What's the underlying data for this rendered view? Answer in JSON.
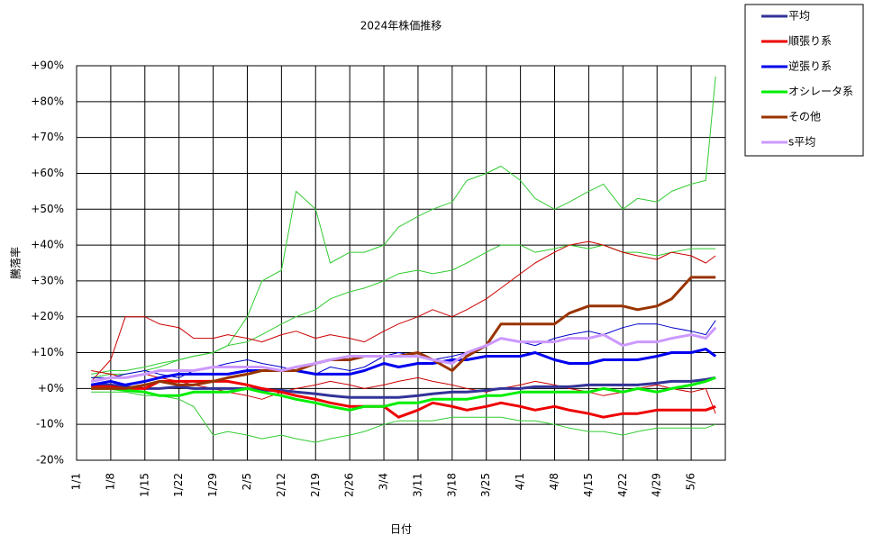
{
  "chart_data": {
    "type": "line",
    "title": "2024年株価推移",
    "xlabel": "日付",
    "ylabel": "騰落率",
    "x": [
      3,
      7,
      10,
      14,
      17,
      21,
      24,
      28,
      31,
      35,
      38,
      42,
      45,
      49,
      52,
      56,
      59,
      63,
      66,
      70,
      73,
      77,
      80,
      84,
      87,
      91,
      94,
      98,
      101,
      105,
      108,
      112,
      115,
      119,
      122,
      126,
      129,
      131
    ],
    "xlim": [
      0,
      133
    ],
    "xticks": [
      {
        "value": 0,
        "label": "1/1"
      },
      {
        "value": 7,
        "label": "1/8"
      },
      {
        "value": 14,
        "label": "1/15"
      },
      {
        "value": 21,
        "label": "1/22"
      },
      {
        "value": 28,
        "label": "1/29"
      },
      {
        "value": 35,
        "label": "2/5"
      },
      {
        "value": 42,
        "label": "2/12"
      },
      {
        "value": 49,
        "label": "2/19"
      },
      {
        "value": 56,
        "label": "2/26"
      },
      {
        "value": 63,
        "label": "3/4"
      },
      {
        "value": 70,
        "label": "3/11"
      },
      {
        "value": 77,
        "label": "3/18"
      },
      {
        "value": 84,
        "label": "3/25"
      },
      {
        "value": 91,
        "label": "4/1"
      },
      {
        "value": 98,
        "label": "4/8"
      },
      {
        "value": 105,
        "label": "4/15"
      },
      {
        "value": 112,
        "label": "4/22"
      },
      {
        "value": 119,
        "label": "4/29"
      },
      {
        "value": 126,
        "label": "5/6"
      }
    ],
    "ylim": [
      -20,
      90
    ],
    "yticks": [
      {
        "value": -20,
        "label": "-20%"
      },
      {
        "value": -10,
        "label": "-10%"
      },
      {
        "value": 0,
        "label": "+0%"
      },
      {
        "value": 10,
        "label": "+10%"
      },
      {
        "value": 20,
        "label": "+20%"
      },
      {
        "value": 30,
        "label": "+30%"
      },
      {
        "value": 40,
        "label": "+40%"
      },
      {
        "value": 50,
        "label": "+50%"
      },
      {
        "value": 60,
        "label": "+60%"
      },
      {
        "value": 70,
        "label": "+70%"
      },
      {
        "value": 80,
        "label": "+80%"
      },
      {
        "value": 90,
        "label": "+90%"
      }
    ],
    "grid": true,
    "legend": "outside-top-right",
    "series": [
      {
        "color": "#33cc33",
        "line_width": 1,
        "values": [
          3,
          4,
          4,
          5,
          6,
          8,
          9,
          10,
          12,
          20,
          30,
          33,
          55,
          50,
          35,
          38,
          38,
          40,
          45,
          48,
          50,
          52,
          58,
          60,
          62,
          58,
          53,
          50,
          52,
          55,
          57,
          50,
          53,
          52,
          55,
          57,
          58,
          87
        ]
      },
      {
        "color": "#33cc33",
        "line_width": 1,
        "values": [
          -1,
          -1,
          -1,
          -2,
          -2,
          -3,
          -5,
          -13,
          -12,
          -13,
          -14,
          -13,
          -14,
          -15,
          -14,
          -13,
          -12,
          -10,
          -9,
          -9,
          -9,
          -8,
          -8,
          -8,
          -8,
          -9,
          -9,
          -10,
          -11,
          -12,
          -12,
          -13,
          -12,
          -11,
          -11,
          -11,
          -11,
          -10
        ]
      },
      {
        "color": "#33cc33",
        "line_width": 1,
        "values": [
          4,
          5,
          5,
          6,
          7,
          8,
          9,
          10,
          12,
          13,
          15,
          18,
          20,
          22,
          25,
          27,
          28,
          30,
          32,
          33,
          32,
          33,
          35,
          38,
          40,
          40,
          38,
          39,
          40,
          39,
          40,
          38,
          38,
          37,
          38,
          39,
          39,
          39
        ]
      },
      {
        "color": "#cc0000",
        "line_width": 1,
        "values": [
          2,
          8,
          20,
          20,
          18,
          17,
          14,
          14,
          15,
          14,
          13,
          15,
          16,
          14,
          15,
          14,
          13,
          16,
          18,
          20,
          22,
          20,
          22,
          25,
          28,
          32,
          35,
          38,
          40,
          41,
          40,
          38,
          37,
          36,
          38,
          37,
          35,
          37
        ]
      },
      {
        "color": "#cc0000",
        "line_width": 1,
        "values": [
          5,
          4,
          3,
          4,
          3,
          2,
          1,
          0,
          -1,
          -2,
          -3,
          -1,
          0,
          1,
          2,
          1,
          0,
          1,
          2,
          3,
          2,
          1,
          0,
          -1,
          0,
          1,
          2,
          1,
          0,
          -1,
          -2,
          -1,
          0,
          1,
          0,
          -1,
          0,
          -7
        ]
      },
      {
        "color": "#0000cc",
        "line_width": 1,
        "values": [
          3,
          3,
          4,
          5,
          4,
          3,
          5,
          6,
          7,
          8,
          7,
          6,
          5,
          4,
          6,
          5,
          6,
          9,
          10,
          9,
          8,
          9,
          10,
          12,
          14,
          13,
          12,
          14,
          15,
          16,
          15,
          17,
          18,
          18,
          17,
          16,
          15,
          19
        ]
      },
      {
        "name": "平均",
        "color": "#333399",
        "line_width": 3,
        "values": [
          1,
          1,
          0.5,
          0,
          0,
          0.5,
          0,
          0,
          0,
          0,
          -0.5,
          -0.5,
          -1,
          -1.5,
          -2,
          -2.5,
          -2.5,
          -2.5,
          -2.5,
          -2,
          -1.5,
          -1,
          -1,
          -0.5,
          0,
          0,
          0.5,
          0.5,
          0.5,
          1,
          1,
          1,
          1,
          1.5,
          2,
          2,
          2.5,
          3
        ]
      },
      {
        "name": "順張り系",
        "color": "#ee0000",
        "line_width": 3,
        "values": [
          0.5,
          0.5,
          0,
          0,
          2,
          2,
          2,
          2,
          2,
          1,
          0,
          -1,
          -2,
          -3,
          -4,
          -5,
          -5,
          -5,
          -8,
          -6,
          -4,
          -5,
          -6,
          -5,
          -4,
          -5,
          -6,
          -5,
          -6,
          -7,
          -8,
          -7,
          -7,
          -6,
          -6,
          -6,
          -6,
          -5
        ]
      },
      {
        "name": "逆張り系",
        "color": "#0000ee",
        "line_width": 3,
        "values": [
          1,
          2,
          1,
          2,
          3,
          4,
          4,
          4,
          4,
          5,
          5,
          5,
          5,
          4,
          4,
          4,
          5,
          7,
          6,
          7,
          7,
          8,
          8,
          9,
          9,
          9,
          10,
          8,
          7,
          7,
          8,
          8,
          8,
          9,
          10,
          10,
          11,
          9
        ]
      },
      {
        "name": "オシレータ系",
        "color": "#00ee00",
        "line_width": 3,
        "values": [
          0,
          0,
          -0.5,
          -1,
          -2,
          -2,
          -1,
          -1,
          -1,
          0,
          -1,
          -2,
          -3,
          -4,
          -5,
          -6,
          -5,
          -5,
          -4,
          -4,
          -3,
          -3,
          -3,
          -2,
          -2,
          -1,
          -1,
          -1,
          -1,
          -1,
          0,
          -1,
          0,
          -1,
          0,
          1,
          2,
          3
        ]
      },
      {
        "name": "その他",
        "color": "#993300",
        "line_width": 3,
        "values": [
          0,
          0,
          0,
          1,
          2,
          1,
          1,
          2,
          3,
          4,
          5,
          5,
          5,
          7,
          8,
          8,
          9,
          9,
          9,
          10,
          8,
          5,
          9,
          12,
          18,
          18,
          18,
          18,
          21,
          23,
          23,
          23,
          22,
          23,
          25,
          31,
          31,
          31
        ]
      },
      {
        "name": "s平均",
        "color": "#cc99ff",
        "line_width": 3,
        "values": [
          2,
          3,
          3,
          4,
          5,
          5,
          5,
          6,
          6,
          6,
          6,
          5,
          6,
          7,
          8,
          9,
          9,
          9,
          9,
          9,
          8,
          7,
          10,
          12,
          14,
          13,
          13,
          13,
          14,
          14,
          15,
          12,
          13,
          13,
          14,
          15,
          14,
          17
        ]
      }
    ]
  }
}
